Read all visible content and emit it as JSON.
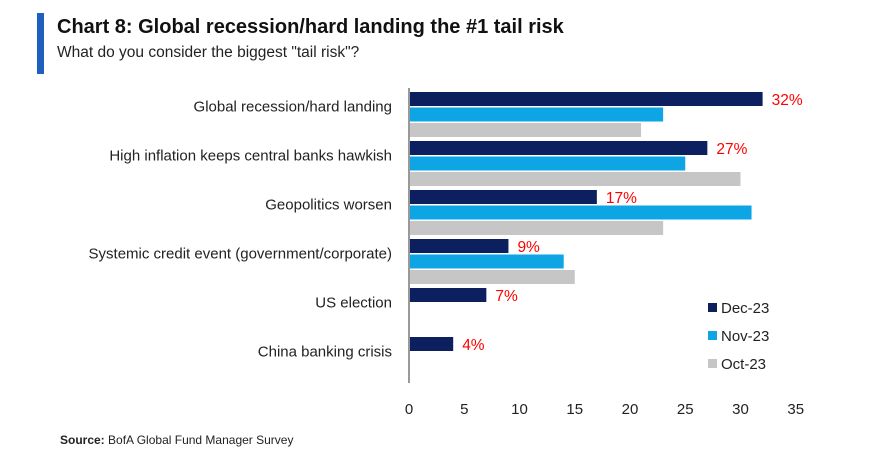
{
  "title": "Chart 8: Global recession/hard landing the #1 tail risk",
  "subtitle": "What do you consider the biggest \"tail risk\"?",
  "source_label": "Source:",
  "source_text": "BofA Global Fund Manager Survey",
  "colors": {
    "dec": "#0c1f5f",
    "nov": "#0ea5e4",
    "oct": "#c6c6c6",
    "label": "#ff0000",
    "accent": "#1f5fbf"
  },
  "chart_data": {
    "type": "bar",
    "orientation": "horizontal",
    "title": "Chart 8: Global recession/hard landing the #1 tail risk",
    "subtitle": "What do you consider the biggest \"tail risk\"?",
    "categories": [
      "Global recession/hard landing",
      "High inflation keeps central banks hawkish",
      "Geopolitics worsen",
      "Systemic credit event (government/corporate)",
      "US election",
      "China banking crisis"
    ],
    "series": [
      {
        "name": "Dec-23",
        "values": [
          32,
          27,
          17,
          9,
          7,
          4
        ]
      },
      {
        "name": "Nov-23",
        "values": [
          23,
          25,
          31,
          14,
          null,
          null
        ]
      },
      {
        "name": "Oct-23",
        "values": [
          21,
          30,
          23,
          15,
          null,
          null
        ]
      }
    ],
    "data_labels": [
      "32%",
      "27%",
      "17%",
      "9%",
      "7%",
      "4%"
    ],
    "x_ticks": [
      "0",
      "5",
      "10",
      "15",
      "20",
      "25",
      "30",
      "35"
    ],
    "xlim": [
      0,
      35
    ],
    "grid": false,
    "legend": "bottom-right"
  }
}
